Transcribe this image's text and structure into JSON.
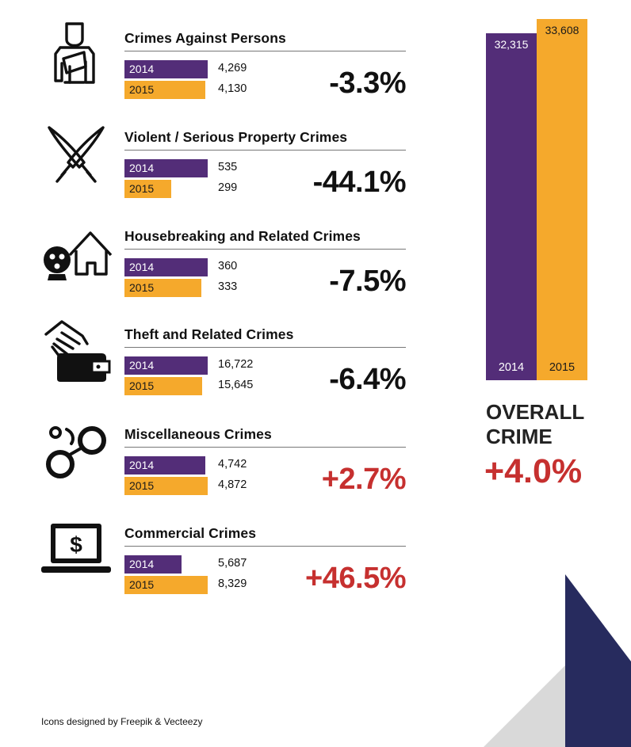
{
  "colors": {
    "y2014": "#532d78",
    "y2015": "#f5a92c",
    "decrease": "#111111",
    "increase": "#c6302f",
    "deco_navy": "#272b5e",
    "deco_grey": "#d9d9d9"
  },
  "chart_data": {
    "type": "bar",
    "orientation": "horizontal",
    "series_labels": [
      "2014",
      "2015"
    ],
    "categories": [
      {
        "name": "Crimes Against Persons",
        "icon": "injured-person-icon",
        "values": [
          4269,
          4130
        ],
        "labels": [
          "4,269",
          "4,130"
        ],
        "change": "-3.3%",
        "direction": "decrease"
      },
      {
        "name": "Violent / Serious Property Crimes",
        "icon": "crossed-knives-icon",
        "values": [
          535,
          299
        ],
        "labels": [
          "535",
          "299"
        ],
        "change": "-44.1%",
        "direction": "decrease"
      },
      {
        "name": "Housebreaking and Related Crimes",
        "icon": "masked-burglar-house-icon",
        "values": [
          360,
          333
        ],
        "labels": [
          "360",
          "333"
        ],
        "change": "-7.5%",
        "direction": "decrease"
      },
      {
        "name": "Theft and Related Crimes",
        "icon": "hand-stealing-wallet-icon",
        "values": [
          16722,
          15645
        ],
        "labels": [
          "16,722",
          "15,645"
        ],
        "change": "-6.4%",
        "direction": "decrease"
      },
      {
        "name": "Miscellaneous Crimes",
        "icon": "handcuffs-icon",
        "values": [
          4742,
          4872
        ],
        "labels": [
          "4,742",
          "4,872"
        ],
        "change": "+2.7%",
        "direction": "increase"
      },
      {
        "name": "Commercial Crimes",
        "icon": "laptop-dollar-icon",
        "values": [
          5687,
          8329
        ],
        "labels": [
          "5,687",
          "8,329"
        ],
        "change": "+46.5%",
        "direction": "increase"
      }
    ],
    "overall": {
      "type": "bar",
      "categories": [
        "2014",
        "2015"
      ],
      "values": [
        32315,
        33608
      ],
      "labels": [
        "32,315",
        "33,608"
      ],
      "ylim": [
        0,
        33608
      ],
      "title": "OVERALL CRIME",
      "change": "+4.0%",
      "direction": "increase"
    }
  },
  "footer": {
    "credit": "Icons designed by Freepik & Vecteezy"
  }
}
